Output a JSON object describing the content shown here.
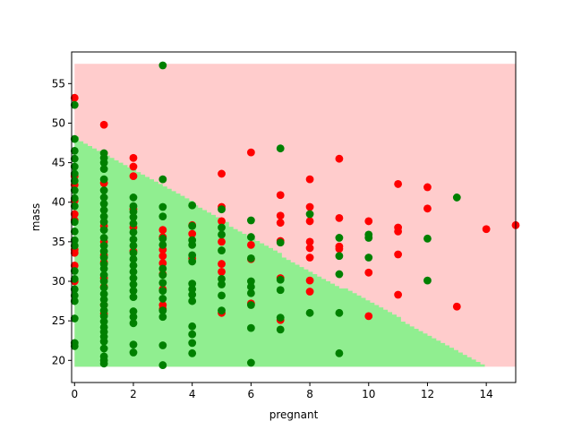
{
  "chart_data": {
    "type": "scatter",
    "title": "",
    "xlabel": "pregnant",
    "ylabel": "mass",
    "xlim": [
      -0.1,
      15.0
    ],
    "ylim": [
      17.2,
      59.0
    ],
    "xticks": [
      0,
      2,
      4,
      6,
      8,
      10,
      12,
      14
    ],
    "yticks": [
      20,
      25,
      30,
      35,
      40,
      45,
      50,
      55
    ],
    "grid": false,
    "legend": "none",
    "colors": {
      "region_positive": "#ffcccc",
      "region_negative": "#90ee90",
      "points_positive": "#ff0000",
      "points_negative": "#008000"
    },
    "decision_regions": {
      "background_class": "positive",
      "y_range": [
        19.2,
        57.5
      ],
      "x_range": [
        0.0,
        15.0
      ],
      "negative_region_boundary": [
        {
          "x": 0.0,
          "y": 48.3
        },
        {
          "x": 2.0,
          "y": 44.2
        },
        {
          "x": 4.0,
          "y": 40.0
        },
        {
          "x": 6.0,
          "y": 35.5
        },
        {
          "x": 8.0,
          "y": 31.3
        },
        {
          "x": 10.0,
          "y": 27.5
        },
        {
          "x": 12.0,
          "y": 23.3
        },
        {
          "x": 13.5,
          "y": 20.2
        },
        {
          "x": 14.0,
          "y": 19.2
        }
      ]
    },
    "series": [
      {
        "class": "positive",
        "points": [
          [
            0,
            53.2
          ],
          [
            0,
            43.3
          ],
          [
            0,
            42.2
          ],
          [
            0,
            40.2
          ],
          [
            0,
            38.5
          ],
          [
            0,
            37.7
          ],
          [
            0,
            34.0
          ],
          [
            0,
            33.6
          ],
          [
            0,
            32.0
          ],
          [
            0,
            30.0
          ],
          [
            1,
            49.8
          ],
          [
            1,
            42.4
          ],
          [
            1,
            37.0
          ],
          [
            1,
            35.0
          ],
          [
            1,
            33.3
          ],
          [
            1,
            32.4
          ],
          [
            1,
            30.4
          ],
          [
            1,
            29.3
          ],
          [
            1,
            27.0
          ],
          [
            1,
            25.9
          ],
          [
            2,
            45.6
          ],
          [
            2,
            44.5
          ],
          [
            2,
            43.3
          ],
          [
            2,
            39.1
          ],
          [
            2,
            36.8
          ],
          [
            2,
            33.8
          ],
          [
            3,
            36.5
          ],
          [
            3,
            35.6
          ],
          [
            3,
            34.0
          ],
          [
            3,
            33.2
          ],
          [
            3,
            32.3
          ],
          [
            3,
            30.9
          ],
          [
            3,
            29.0
          ],
          [
            3,
            27.0
          ],
          [
            3,
            26.5
          ],
          [
            4,
            37.1
          ],
          [
            4,
            36.0
          ],
          [
            4,
            32.9
          ],
          [
            5,
            43.6
          ],
          [
            5,
            39.4
          ],
          [
            5,
            37.6
          ],
          [
            5,
            35.0
          ],
          [
            5,
            32.2
          ],
          [
            5,
            31.2
          ],
          [
            5,
            26.0
          ],
          [
            6,
            46.3
          ],
          [
            6,
            34.6
          ],
          [
            6,
            32.8
          ],
          [
            6,
            27.2
          ],
          [
            7,
            40.9
          ],
          [
            7,
            38.3
          ],
          [
            7,
            37.4
          ],
          [
            7,
            35.1
          ],
          [
            7,
            30.4
          ],
          [
            7,
            25.1
          ],
          [
            8,
            42.9
          ],
          [
            8,
            39.4
          ],
          [
            8,
            37.6
          ],
          [
            8,
            35.0
          ],
          [
            8,
            34.2
          ],
          [
            8,
            33.0
          ],
          [
            8,
            30.1
          ],
          [
            8,
            28.7
          ],
          [
            9,
            45.5
          ],
          [
            9,
            38.0
          ],
          [
            9,
            34.4
          ],
          [
            9,
            34.1
          ],
          [
            10,
            37.6
          ],
          [
            10,
            31.1
          ],
          [
            10,
            25.6
          ],
          [
            11,
            42.3
          ],
          [
            11,
            36.8
          ],
          [
            11,
            36.3
          ],
          [
            11,
            33.4
          ],
          [
            11,
            28.3
          ],
          [
            12,
            41.9
          ],
          [
            12,
            39.2
          ],
          [
            13,
            26.8
          ],
          [
            14,
            36.6
          ],
          [
            15,
            37.1
          ]
        ]
      },
      {
        "class": "negative",
        "points": [
          [
            0,
            52.3
          ],
          [
            0,
            48.0
          ],
          [
            0,
            46.5
          ],
          [
            0,
            45.5
          ],
          [
            0,
            44.5
          ],
          [
            0,
            43.6
          ],
          [
            0,
            42.7
          ],
          [
            0,
            41.5
          ],
          [
            0,
            40.5
          ],
          [
            0,
            39.5
          ],
          [
            0,
            37.5
          ],
          [
            0,
            36.3
          ],
          [
            0,
            35.2
          ],
          [
            0,
            34.5
          ],
          [
            0,
            31.3
          ],
          [
            0,
            30.3
          ],
          [
            0,
            29.0
          ],
          [
            0,
            28.2
          ],
          [
            0,
            27.5
          ],
          [
            0,
            25.3
          ],
          [
            0,
            22.2
          ],
          [
            0,
            21.8
          ],
          [
            1,
            46.2
          ],
          [
            1,
            45.6
          ],
          [
            1,
            45.0
          ],
          [
            1,
            44.2
          ],
          [
            1,
            42.9
          ],
          [
            1,
            41.5
          ],
          [
            1,
            40.6
          ],
          [
            1,
            39.8
          ],
          [
            1,
            39.0
          ],
          [
            1,
            38.2
          ],
          [
            1,
            37.5
          ],
          [
            1,
            36.5
          ],
          [
            1,
            35.5
          ],
          [
            1,
            34.5
          ],
          [
            1,
            33.8
          ],
          [
            1,
            33.0
          ],
          [
            1,
            32.2
          ],
          [
            1,
            31.6
          ],
          [
            1,
            30.8
          ],
          [
            1,
            30.0
          ],
          [
            1,
            29.2
          ],
          [
            1,
            28.4
          ],
          [
            1,
            27.7
          ],
          [
            1,
            27.0
          ],
          [
            1,
            26.3
          ],
          [
            1,
            25.6
          ],
          [
            1,
            24.9
          ],
          [
            1,
            24.2
          ],
          [
            1,
            23.6
          ],
          [
            1,
            23.0
          ],
          [
            1,
            22.4
          ],
          [
            1,
            21.5
          ],
          [
            1,
            20.5
          ],
          [
            1,
            20.0
          ],
          [
            1,
            19.6
          ],
          [
            2,
            40.6
          ],
          [
            2,
            39.5
          ],
          [
            2,
            38.8
          ],
          [
            2,
            38.1
          ],
          [
            2,
            37.3
          ],
          [
            2,
            36.2
          ],
          [
            2,
            35.3
          ],
          [
            2,
            34.5
          ],
          [
            2,
            33.6
          ],
          [
            2,
            32.8
          ],
          [
            2,
            32.0
          ],
          [
            2,
            31.2
          ],
          [
            2,
            30.4
          ],
          [
            2,
            29.6
          ],
          [
            2,
            28.8
          ],
          [
            2,
            28.0
          ],
          [
            2,
            26.2
          ],
          [
            2,
            25.5
          ],
          [
            2,
            24.7
          ],
          [
            2,
            22.0
          ],
          [
            2,
            21.0
          ],
          [
            3,
            57.3
          ],
          [
            3,
            42.9
          ],
          [
            3,
            39.4
          ],
          [
            3,
            38.2
          ],
          [
            3,
            35.4
          ],
          [
            3,
            34.6
          ],
          [
            3,
            31.6
          ],
          [
            3,
            30.8
          ],
          [
            3,
            29.8
          ],
          [
            3,
            28.8
          ],
          [
            3,
            27.8
          ],
          [
            3,
            26.3
          ],
          [
            3,
            25.5
          ],
          [
            3,
            21.9
          ],
          [
            3,
            19.4
          ],
          [
            4,
            39.6
          ],
          [
            4,
            37.0
          ],
          [
            4,
            35.2
          ],
          [
            4,
            34.6
          ],
          [
            4,
            33.3
          ],
          [
            4,
            32.5
          ],
          [
            4,
            29.7
          ],
          [
            4,
            29.0
          ],
          [
            4,
            28.3
          ],
          [
            4,
            27.5
          ],
          [
            4,
            24.3
          ],
          [
            4,
            23.3
          ],
          [
            4,
            22.2
          ],
          [
            4,
            20.9
          ],
          [
            5,
            39.1
          ],
          [
            5,
            36.8
          ],
          [
            5,
            35.9
          ],
          [
            5,
            33.9
          ],
          [
            5,
            30.3
          ],
          [
            5,
            29.6
          ],
          [
            5,
            28.2
          ],
          [
            5,
            26.3
          ],
          [
            6,
            37.7
          ],
          [
            6,
            35.6
          ],
          [
            6,
            32.9
          ],
          [
            6,
            30.0
          ],
          [
            6,
            29.3
          ],
          [
            6,
            28.5
          ],
          [
            6,
            27.0
          ],
          [
            6,
            24.1
          ],
          [
            6,
            19.7
          ],
          [
            7,
            46.8
          ],
          [
            7,
            34.9
          ],
          [
            7,
            30.2
          ],
          [
            7,
            28.9
          ],
          [
            7,
            25.4
          ],
          [
            7,
            23.9
          ],
          [
            8,
            38.5
          ],
          [
            8,
            26.0
          ],
          [
            9,
            35.5
          ],
          [
            9,
            33.2
          ],
          [
            9,
            30.9
          ],
          [
            9,
            26.0
          ],
          [
            9,
            20.9
          ],
          [
            10,
            35.9
          ],
          [
            10,
            35.5
          ],
          [
            10,
            33.0
          ],
          [
            12,
            35.4
          ],
          [
            12,
            30.1
          ],
          [
            13,
            40.6
          ]
        ]
      }
    ]
  }
}
